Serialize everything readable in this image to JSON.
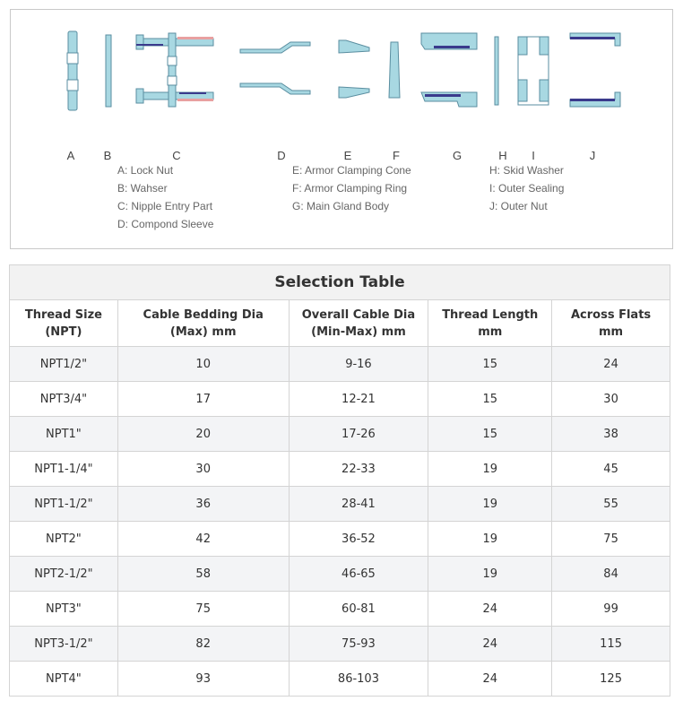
{
  "diagram": {
    "part_letters": [
      "A",
      "B",
      "C",
      "D",
      "E",
      "F",
      "G",
      "H",
      "I",
      "J"
    ],
    "legend": [
      [
        "A: Lock Nut",
        "B: Wahser",
        "C: Nipple Entry Part",
        "D: Compond Sleeve"
      ],
      [
        "E: Armor Clamping Cone",
        "F: Armor Clamping Ring",
        "G: Main Gland Body"
      ],
      [
        "H: Skid Washer",
        "I: Outer Sealing",
        "J: Outer Nut"
      ]
    ],
    "colors": {
      "part_fill": "#a8d8e2",
      "part_stroke": "#5a8ea0",
      "seal": "#3a3a8c",
      "accent": "#e8a0a0"
    }
  },
  "table": {
    "title": "Selection Table",
    "headers": [
      [
        "Thread Size",
        "(NPT)"
      ],
      [
        "Cable Bedding Dia",
        "(Max) mm"
      ],
      [
        "Overall Cable Dia",
        "(Min-Max) mm"
      ],
      [
        "Thread Length",
        "mm"
      ],
      [
        "Across Flats",
        "mm"
      ]
    ],
    "rows": [
      [
        "NPT1/2\"",
        "10",
        "9-16",
        "15",
        "24"
      ],
      [
        "NPT3/4\"",
        "17",
        "12-21",
        "15",
        "30"
      ],
      [
        "NPT1\"",
        "20",
        "17-26",
        "15",
        "38"
      ],
      [
        "NPT1-1/4\"",
        "30",
        "22-33",
        "19",
        "45"
      ],
      [
        "NPT1-1/2\"",
        "36",
        "28-41",
        "19",
        "55"
      ],
      [
        "NPT2\"",
        "42",
        "36-52",
        "19",
        "75"
      ],
      [
        "NPT2-1/2\"",
        "58",
        "46-65",
        "19",
        "84"
      ],
      [
        "NPT3\"",
        "75",
        "60-81",
        "24",
        "99"
      ],
      [
        "NPT3-1/2\"",
        "82",
        "75-93",
        "24",
        "115"
      ],
      [
        "NPT4\"",
        "93",
        "86-103",
        "24",
        "125"
      ]
    ]
  }
}
